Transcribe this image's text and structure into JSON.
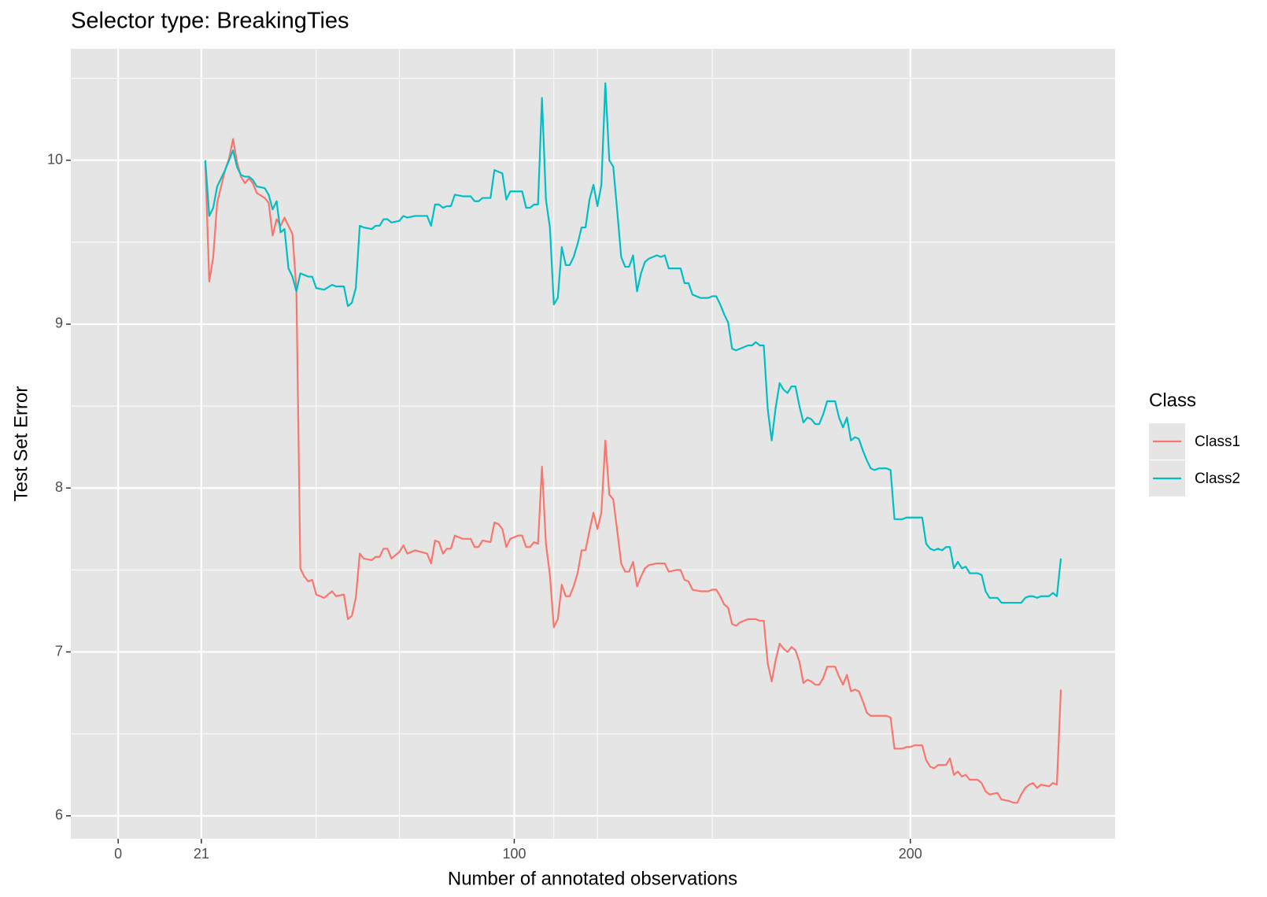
{
  "chart_data": {
    "type": "line",
    "title": "Selector type: BreakingTies",
    "x_label": "Number of annotated observations",
    "y_label": "Test Set Error",
    "legend_title": "Class",
    "legend_position": "right",
    "grid": true,
    "background": "#e5e5e5",
    "xlim": [
      -11.95,
      251.7
    ],
    "ylim": [
      5.86,
      10.68
    ],
    "xticks": [
      0,
      21,
      100,
      200
    ],
    "yticks": [
      6,
      7,
      8,
      9,
      10
    ],
    "x_minor_ticks": [
      50,
      71,
      110,
      121,
      150
    ],
    "y_minor_ticks": [
      6.5,
      7.5,
      8.5,
      9.5,
      10.5
    ],
    "x": [
      22,
      23,
      24,
      25,
      27,
      28,
      29,
      30,
      31,
      32,
      33,
      34,
      35,
      37,
      38,
      39,
      40,
      41,
      42,
      43,
      44,
      45,
      46,
      47,
      48,
      49,
      50,
      52,
      54,
      55,
      57,
      58,
      59,
      60,
      61,
      62,
      64,
      65,
      66,
      67,
      68,
      69,
      71,
      72,
      73,
      75,
      78,
      79,
      80,
      81,
      82,
      83,
      84,
      85,
      87,
      89,
      90,
      91,
      92,
      94,
      95,
      96,
      97,
      98,
      99,
      101,
      102,
      103,
      104,
      105,
      106,
      107,
      108,
      109,
      110,
      111,
      112,
      113,
      114,
      115,
      116,
      117,
      118,
      119,
      120,
      121,
      122,
      123,
      124,
      125,
      126,
      127,
      128,
      129,
      130,
      131,
      132,
      133,
      134,
      136,
      137,
      138,
      139,
      141,
      142,
      143,
      144,
      145,
      147,
      149,
      150,
      151,
      152,
      153,
      154,
      155,
      156,
      157,
      158,
      159,
      160,
      161,
      162,
      163,
      164,
      165,
      166,
      167,
      168,
      169,
      170,
      171,
      172,
      173,
      174,
      175,
      176,
      177,
      178,
      179,
      181,
      182,
      183,
      184,
      185,
      186,
      187,
      188,
      189,
      190,
      191,
      192,
      194,
      195,
      196,
      198,
      199,
      200,
      201,
      203,
      204,
      205,
      206,
      207,
      208,
      209,
      210,
      211,
      212,
      213,
      214,
      215,
      217,
      218,
      219,
      220,
      222,
      223,
      225,
      226,
      227,
      228,
      229,
      230,
      231,
      232,
      233,
      235,
      236,
      237,
      238
    ],
    "series": [
      {
        "name": "Class1",
        "color": "#F8766D",
        "values": [
          9.99,
          9.26,
          9.41,
          9.74,
          9.94,
          10.01,
          10.13,
          9.99,
          9.9,
          9.86,
          9.89,
          9.86,
          9.8,
          9.77,
          9.74,
          9.54,
          9.64,
          9.6,
          9.65,
          9.6,
          9.55,
          9.21,
          7.51,
          7.46,
          7.43,
          7.44,
          7.35,
          7.33,
          7.37,
          7.34,
          7.35,
          7.2,
          7.22,
          7.33,
          7.6,
          7.57,
          7.56,
          7.58,
          7.58,
          7.63,
          7.63,
          7.57,
          7.61,
          7.65,
          7.6,
          7.62,
          7.6,
          7.54,
          7.68,
          7.67,
          7.6,
          7.63,
          7.63,
          7.71,
          7.69,
          7.69,
          7.64,
          7.64,
          7.68,
          7.67,
          7.79,
          7.78,
          7.75,
          7.64,
          7.69,
          7.71,
          7.71,
          7.64,
          7.64,
          7.67,
          7.66,
          8.13,
          7.66,
          7.47,
          7.15,
          7.2,
          7.41,
          7.34,
          7.34,
          7.4,
          7.48,
          7.62,
          7.62,
          7.74,
          7.85,
          7.75,
          7.85,
          8.29,
          7.96,
          7.93,
          7.74,
          7.54,
          7.49,
          7.49,
          7.55,
          7.4,
          7.46,
          7.51,
          7.53,
          7.54,
          7.54,
          7.54,
          7.49,
          7.5,
          7.5,
          7.44,
          7.43,
          7.38,
          7.37,
          7.37,
          7.38,
          7.38,
          7.34,
          7.29,
          7.27,
          7.17,
          7.16,
          7.18,
          7.19,
          7.2,
          7.2,
          7.2,
          7.19,
          7.19,
          6.93,
          6.82,
          6.95,
          7.05,
          7.02,
          7.0,
          7.03,
          7.01,
          6.94,
          6.81,
          6.83,
          6.82,
          6.8,
          6.8,
          6.84,
          6.91,
          6.91,
          6.85,
          6.8,
          6.86,
          6.76,
          6.77,
          6.76,
          6.7,
          6.63,
          6.61,
          6.61,
          6.61,
          6.61,
          6.6,
          6.41,
          6.41,
          6.42,
          6.42,
          6.43,
          6.43,
          6.34,
          6.3,
          6.29,
          6.31,
          6.31,
          6.31,
          6.35,
          6.25,
          6.27,
          6.24,
          6.25,
          6.22,
          6.22,
          6.2,
          6.15,
          6.13,
          6.14,
          6.1,
          6.09,
          6.08,
          6.08,
          6.13,
          6.17,
          6.19,
          6.2,
          6.17,
          6.19,
          6.18,
          6.2,
          6.19,
          6.77
        ]
      },
      {
        "name": "Class2",
        "color": "#00BFC4",
        "values": [
          10.0,
          9.66,
          9.71,
          9.84,
          9.94,
          10.0,
          10.06,
          9.96,
          9.91,
          9.9,
          9.9,
          9.88,
          9.84,
          9.83,
          9.79,
          9.7,
          9.75,
          9.56,
          9.58,
          9.34,
          9.29,
          9.2,
          9.31,
          9.3,
          9.29,
          9.29,
          9.22,
          9.21,
          9.24,
          9.23,
          9.23,
          9.11,
          9.13,
          9.22,
          9.6,
          9.59,
          9.58,
          9.6,
          9.6,
          9.64,
          9.64,
          9.62,
          9.63,
          9.66,
          9.65,
          9.66,
          9.66,
          9.6,
          9.73,
          9.73,
          9.71,
          9.72,
          9.72,
          9.79,
          9.78,
          9.78,
          9.75,
          9.75,
          9.77,
          9.77,
          9.94,
          9.93,
          9.92,
          9.76,
          9.81,
          9.81,
          9.81,
          9.71,
          9.71,
          9.73,
          9.73,
          10.38,
          9.76,
          9.59,
          9.12,
          9.16,
          9.47,
          9.36,
          9.36,
          9.41,
          9.49,
          9.59,
          9.59,
          9.76,
          9.85,
          9.72,
          9.85,
          10.47,
          10.0,
          9.96,
          9.69,
          9.41,
          9.35,
          9.35,
          9.42,
          9.2,
          9.31,
          9.38,
          9.4,
          9.42,
          9.41,
          9.42,
          9.34,
          9.34,
          9.34,
          9.25,
          9.25,
          9.18,
          9.16,
          9.16,
          9.17,
          9.17,
          9.12,
          9.06,
          9.01,
          8.85,
          8.84,
          8.85,
          8.86,
          8.87,
          8.87,
          8.89,
          8.87,
          8.87,
          8.48,
          8.29,
          8.49,
          8.64,
          8.6,
          8.58,
          8.62,
          8.62,
          8.5,
          8.4,
          8.43,
          8.42,
          8.39,
          8.39,
          8.45,
          8.53,
          8.53,
          8.43,
          8.37,
          8.43,
          8.29,
          8.31,
          8.3,
          8.23,
          8.17,
          8.12,
          8.11,
          8.12,
          8.12,
          8.11,
          7.81,
          7.81,
          7.82,
          7.82,
          7.82,
          7.82,
          7.66,
          7.63,
          7.62,
          7.63,
          7.62,
          7.64,
          7.64,
          7.51,
          7.55,
          7.51,
          7.52,
          7.48,
          7.48,
          7.47,
          7.37,
          7.33,
          7.33,
          7.3,
          7.3,
          7.3,
          7.3,
          7.3,
          7.33,
          7.34,
          7.34,
          7.33,
          7.34,
          7.34,
          7.36,
          7.34,
          7.57
        ]
      }
    ]
  }
}
